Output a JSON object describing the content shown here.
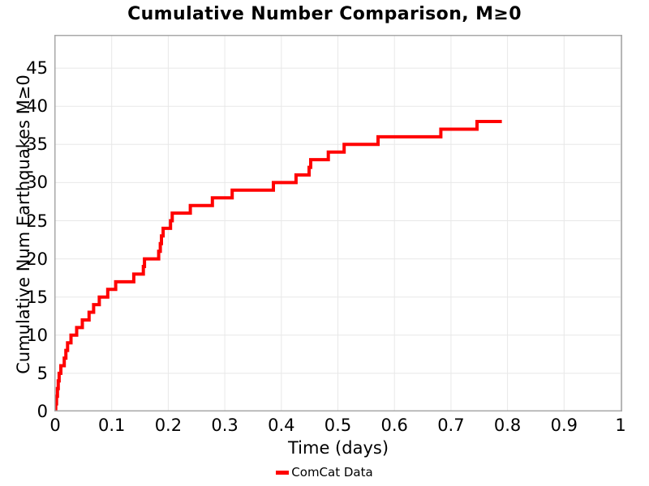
{
  "figure": {
    "title": "Cumulative Number Comparison, M≥0"
  },
  "chart_data": {
    "type": "line",
    "subtype": "cumulative-step",
    "title": "Cumulative Number Comparison, M≥0",
    "xlabel": "Time (days)",
    "ylabel": "Cumulative Num Earthquakes M≥0",
    "xlim": [
      0,
      1.003
    ],
    "ylim": [
      0,
      49.4
    ],
    "x_ticks": [
      0,
      0.1,
      0.2,
      0.3,
      0.4,
      0.5,
      0.6,
      0.7,
      0.8,
      0.9,
      1
    ],
    "y_ticks": [
      0,
      5,
      10,
      15,
      20,
      25,
      30,
      35,
      40,
      45
    ],
    "grid": true,
    "legend_position": "bottom-center",
    "series": [
      {
        "name": "ComCat Data",
        "color": "#ff0000",
        "start_x": 0.0,
        "event_times_days": [
          0.001,
          0.0025,
          0.004,
          0.0055,
          0.007,
          0.01,
          0.016,
          0.019,
          0.022,
          0.028,
          0.038,
          0.048,
          0.06,
          0.068,
          0.078,
          0.093,
          0.107,
          0.139,
          0.156,
          0.158,
          0.183,
          0.186,
          0.188,
          0.191,
          0.204,
          0.207,
          0.239,
          0.278,
          0.313,
          0.386,
          0.426,
          0.449,
          0.452,
          0.483,
          0.511,
          0.571,
          0.682,
          0.746
        ],
        "final_count": 38,
        "line_end_days": 0.79
      }
    ],
    "colors": {
      "line": "#ff0000",
      "grid": "#e8e8e8",
      "plot_border": "#a8a8a8",
      "text": "#000000",
      "background": "#ffffff"
    }
  },
  "legend": {
    "items": [
      {
        "label": "ComCat Data",
        "color": "#ff0000"
      }
    ]
  }
}
